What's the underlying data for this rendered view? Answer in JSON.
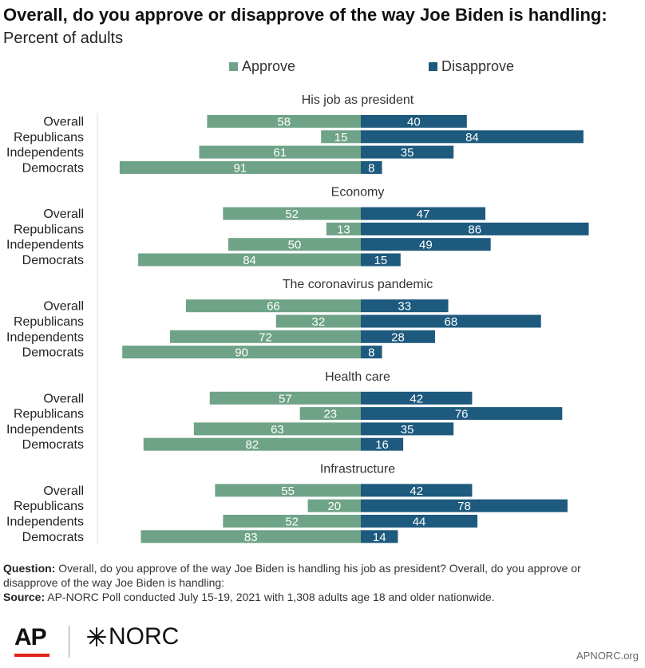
{
  "title": "Overall, do you approve or disapprove of the way Joe Biden is handling:",
  "subtitle": "Percent of adults",
  "legend": {
    "approve": "Approve",
    "disapprove": "Disapprove"
  },
  "colors": {
    "approve": "#6fa387",
    "disapprove": "#1d5a7e",
    "axis": "#dddddd"
  },
  "chart_data": {
    "type": "bar",
    "orientation": "diverging-horizontal",
    "groups": [
      {
        "name": "His job as president",
        "rows": [
          {
            "label": "Overall",
            "approve": 58,
            "disapprove": 40
          },
          {
            "label": "Republicans",
            "approve": 15,
            "disapprove": 84
          },
          {
            "label": "Independents",
            "approve": 61,
            "disapprove": 35
          },
          {
            "label": "Democrats",
            "approve": 91,
            "disapprove": 8
          }
        ]
      },
      {
        "name": "Economy",
        "rows": [
          {
            "label": "Overall",
            "approve": 52,
            "disapprove": 47
          },
          {
            "label": "Republicans",
            "approve": 13,
            "disapprove": 86
          },
          {
            "label": "Independents",
            "approve": 50,
            "disapprove": 49
          },
          {
            "label": "Democrats",
            "approve": 84,
            "disapprove": 15
          }
        ]
      },
      {
        "name": "The coronavirus pandemic",
        "rows": [
          {
            "label": "Overall",
            "approve": 66,
            "disapprove": 33
          },
          {
            "label": "Republicans",
            "approve": 32,
            "disapprove": 68
          },
          {
            "label": "Independents",
            "approve": 72,
            "disapprove": 28
          },
          {
            "label": "Democrats",
            "approve": 90,
            "disapprove": 8
          }
        ]
      },
      {
        "name": "Health care",
        "rows": [
          {
            "label": "Overall",
            "approve": 57,
            "disapprove": 42
          },
          {
            "label": "Republicans",
            "approve": 23,
            "disapprove": 76
          },
          {
            "label": "Independents",
            "approve": 63,
            "disapprove": 35
          },
          {
            "label": "Democrats",
            "approve": 82,
            "disapprove": 16
          }
        ]
      },
      {
        "name": "Infrastructure",
        "rows": [
          {
            "label": "Overall",
            "approve": 55,
            "disapprove": 42
          },
          {
            "label": "Republicans",
            "approve": 20,
            "disapprove": 78
          },
          {
            "label": "Independents",
            "approve": 52,
            "disapprove": 44
          },
          {
            "label": "Democrats",
            "approve": 83,
            "disapprove": 14
          }
        ]
      }
    ]
  },
  "notes": {
    "question_label": "Question:",
    "question_text": "Overall, do you approve of the way Joe Biden is handling his job as president? Overall, do you approve or disapprove of the way Joe Biden is handling:",
    "source_label": "Source:",
    "source_text": "AP-NORC Poll conducted July 15-19, 2021 with 1,308 adults age 18 and older nationwide."
  },
  "logos": {
    "ap": "AP",
    "norc": "NORC"
  },
  "site": "APNORC.org"
}
